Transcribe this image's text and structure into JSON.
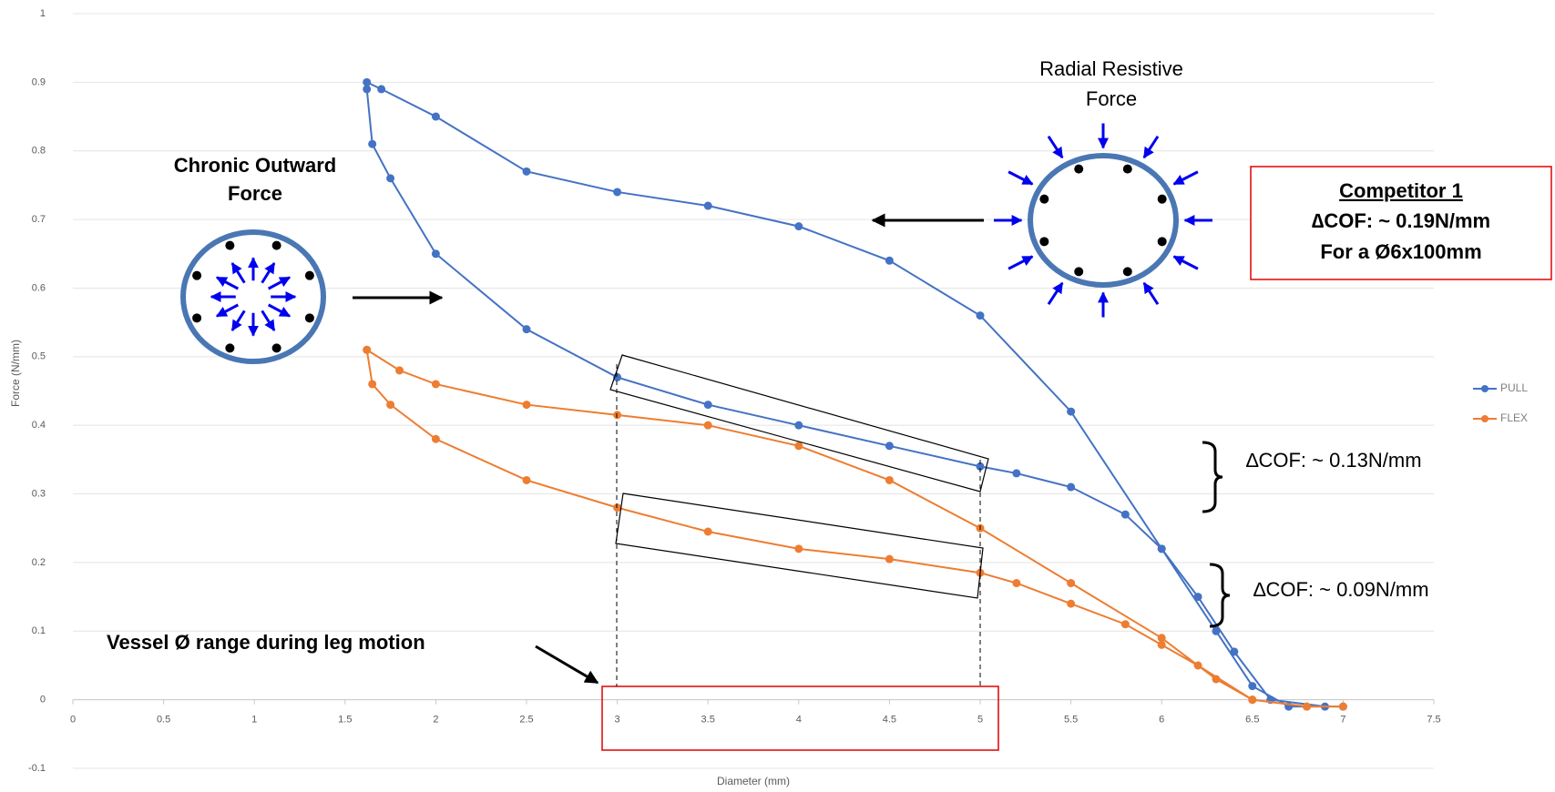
{
  "chart_data": {
    "type": "line",
    "x_label": "Diameter (mm)",
    "y_label": "Force (N/mm)",
    "xlim": [
      0,
      7.5
    ],
    "xticks": [
      0,
      0.5,
      1,
      1.5,
      2,
      2.5,
      3,
      3.5,
      4,
      4.5,
      5,
      5.5,
      6,
      6.5,
      7,
      7.5
    ],
    "ylim": [
      -0.1,
      1
    ],
    "yticks": [
      -0.1,
      0,
      0.1,
      0.2,
      0.3,
      0.4,
      0.5,
      0.6,
      0.7,
      0.8,
      0.9,
      1
    ],
    "grid": true,
    "legend": "right",
    "series": [
      {
        "name": "PULL",
        "color": "#4472c4",
        "x": [
          1.62,
          1.7,
          2,
          2.5,
          3,
          3.5,
          4,
          4.5,
          5,
          5.5,
          6,
          6.3,
          6.5,
          6.7,
          7,
          6.9,
          6.6,
          6.4,
          6.2,
          6,
          5.8,
          5.5,
          5.2,
          5,
          4.5,
          4,
          3.5,
          3,
          2.5,
          2,
          1.75,
          1.65,
          1.62
        ],
        "values": [
          0.9,
          0.89,
          0.85,
          0.77,
          0.74,
          0.72,
          0.69,
          0.64,
          0.56,
          0.42,
          0.22,
          0.1,
          0.02,
          -0.01,
          -0.01,
          -0.01,
          0,
          0.07,
          0.15,
          0.22,
          0.27,
          0.31,
          0.33,
          0.34,
          0.37,
          0.4,
          0.43,
          0.47,
          0.54,
          0.65,
          0.76,
          0.81,
          0.89
        ]
      },
      {
        "name": "FLEX",
        "color": "#ed7d31",
        "x": [
          1.62,
          1.8,
          2,
          2.5,
          3,
          3.5,
          4,
          4.5,
          5,
          5.5,
          6,
          6.3,
          6.5,
          6.8,
          7,
          6.8,
          6.5,
          6.2,
          6,
          5.8,
          5.5,
          5.2,
          5,
          4.5,
          4,
          3.5,
          3,
          2.5,
          2,
          1.75,
          1.65,
          1.62
        ],
        "values": [
          0.51,
          0.48,
          0.46,
          0.43,
          0.415,
          0.4,
          0.37,
          0.32,
          0.25,
          0.17,
          0.09,
          0.03,
          0,
          -0.01,
          -0.01,
          -0.01,
          0,
          0.05,
          0.08,
          0.11,
          0.14,
          0.17,
          0.185,
          0.205,
          0.22,
          0.245,
          0.28,
          0.32,
          0.38,
          0.43,
          0.46,
          0.51
        ]
      }
    ],
    "annotations": {
      "chronic_outward_force": [
        "Chronic Outward",
        "Force"
      ],
      "radial_resistive_force": [
        "Radial Resistive",
        "Force"
      ],
      "competitor": [
        "Competitor 1",
        "∆COF: ~ 0.19N/mm",
        "For a Ø6x100mm"
      ],
      "delta_upper": "∆COF: ~ 0.13N/mm",
      "delta_lower": "∆COF: ~ 0.09N/mm",
      "vessel_range": "Vessel Ø range during leg motion"
    }
  }
}
